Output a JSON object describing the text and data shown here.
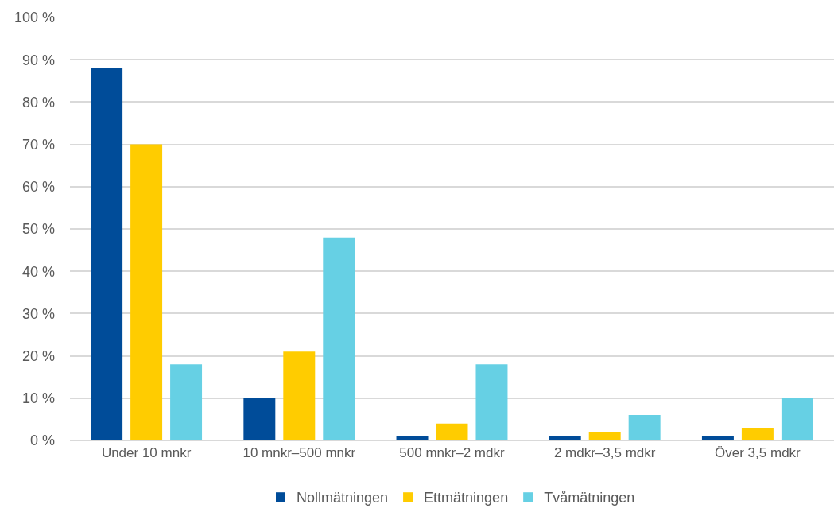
{
  "chart_data": {
    "type": "bar",
    "categories": [
      "Under 10 mnkr",
      "10 mnkr–500 mnkr",
      "500 mnkr–2 mdkr",
      "2 mdkr–3,5 mdkr",
      "Över 3,5 mdkr"
    ],
    "series": [
      {
        "name": "Nollmätningen",
        "color": "#004c99",
        "values": [
          88,
          10,
          1,
          1,
          1
        ]
      },
      {
        "name": "Ettmätningen",
        "color": "#ffcc00",
        "values": [
          70,
          21,
          4,
          2,
          3
        ]
      },
      {
        "name": "Tvåmätningen",
        "color": "#66d0e4",
        "values": [
          18,
          48,
          18,
          6,
          10
        ]
      }
    ],
    "ylim": [
      0,
      100
    ],
    "yticks": [
      {
        "value": 0,
        "label": "0 %"
      },
      {
        "value": 10,
        "label": "10 %"
      },
      {
        "value": 20,
        "label": "20 %"
      },
      {
        "value": 30,
        "label": "30 %"
      },
      {
        "value": 40,
        "label": "40 %"
      },
      {
        "value": 50,
        "label": "50 %"
      },
      {
        "value": 60,
        "label": "60 %"
      },
      {
        "value": 70,
        "label": "70 %"
      },
      {
        "value": 80,
        "label": "80 %"
      },
      {
        "value": 90,
        "label": "90 %"
      },
      {
        "value": 100,
        "label": "100 %"
      }
    ],
    "grid": "y",
    "legend": "bottom"
  }
}
